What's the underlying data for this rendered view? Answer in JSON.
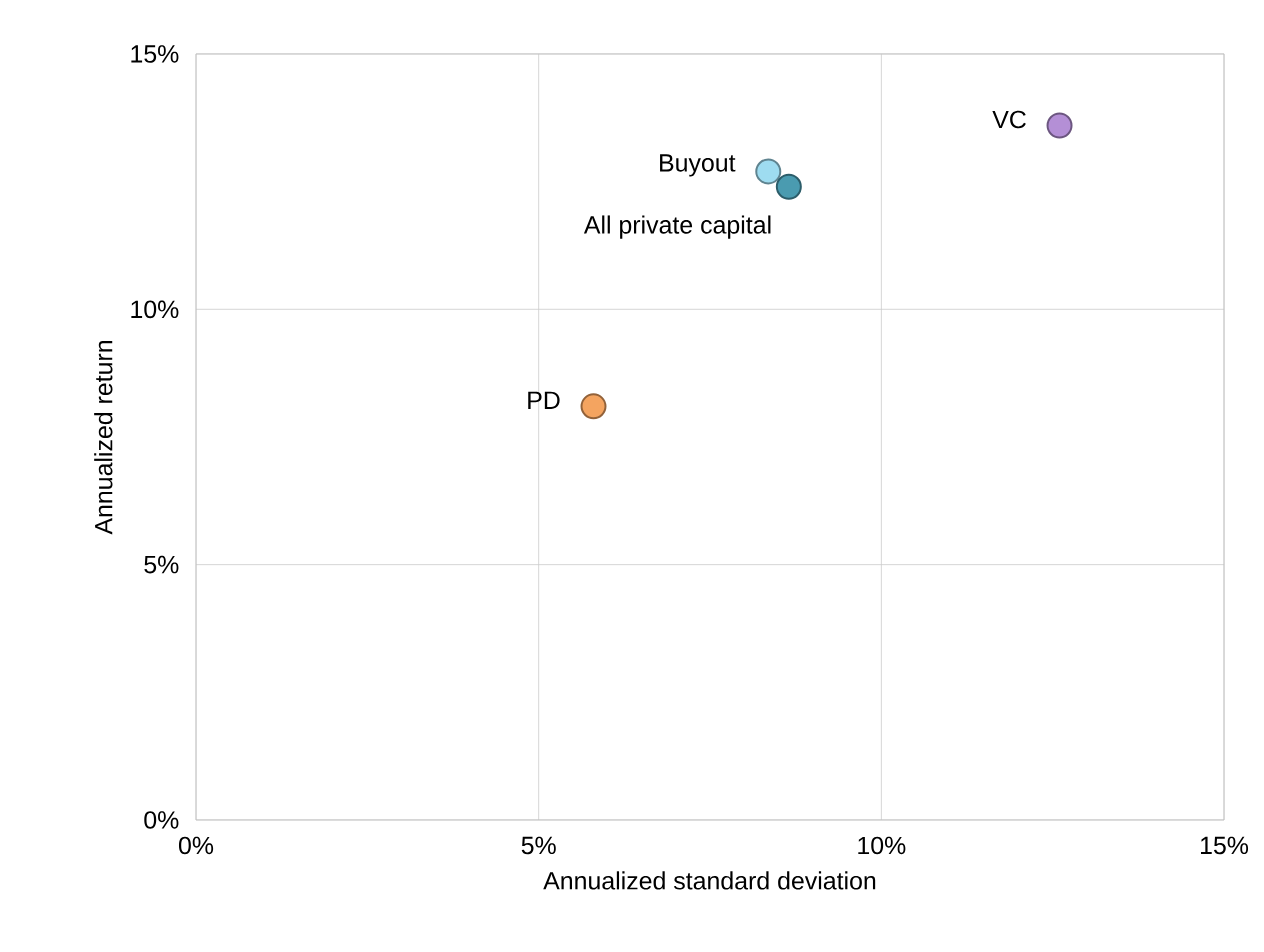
{
  "chart_data": {
    "type": "scatter",
    "xlabel": "Annualized standard deviation",
    "ylabel": "Annualized return",
    "xlim": [
      0,
      15
    ],
    "ylim": [
      0,
      15
    ],
    "xticks": [
      {
        "value": 0,
        "label": "0%"
      },
      {
        "value": 5,
        "label": "5%"
      },
      {
        "value": 10,
        "label": "10%"
      },
      {
        "value": 15,
        "label": "15%"
      }
    ],
    "yticks": [
      {
        "value": 0,
        "label": "0%"
      },
      {
        "value": 5,
        "label": "5%"
      },
      {
        "value": 10,
        "label": "10%"
      },
      {
        "value": 15,
        "label": "15%"
      }
    ],
    "grid": true,
    "marker": "circle",
    "legend": false,
    "series": [
      {
        "name": "Buyout",
        "color": "#9edcf0",
        "x": [
          8.35
        ],
        "values": [
          12.7
        ]
      },
      {
        "name": "All private capital",
        "color": "#4a9bb0",
        "x": [
          8.65
        ],
        "values": [
          12.4
        ]
      },
      {
        "name": "VC",
        "color": "#b48fd6",
        "x": [
          12.6
        ],
        "values": [
          13.6
        ]
      },
      {
        "name": "PD",
        "color": "#f4a460",
        "x": [
          5.8
        ],
        "values": [
          8.1
        ]
      }
    ]
  }
}
